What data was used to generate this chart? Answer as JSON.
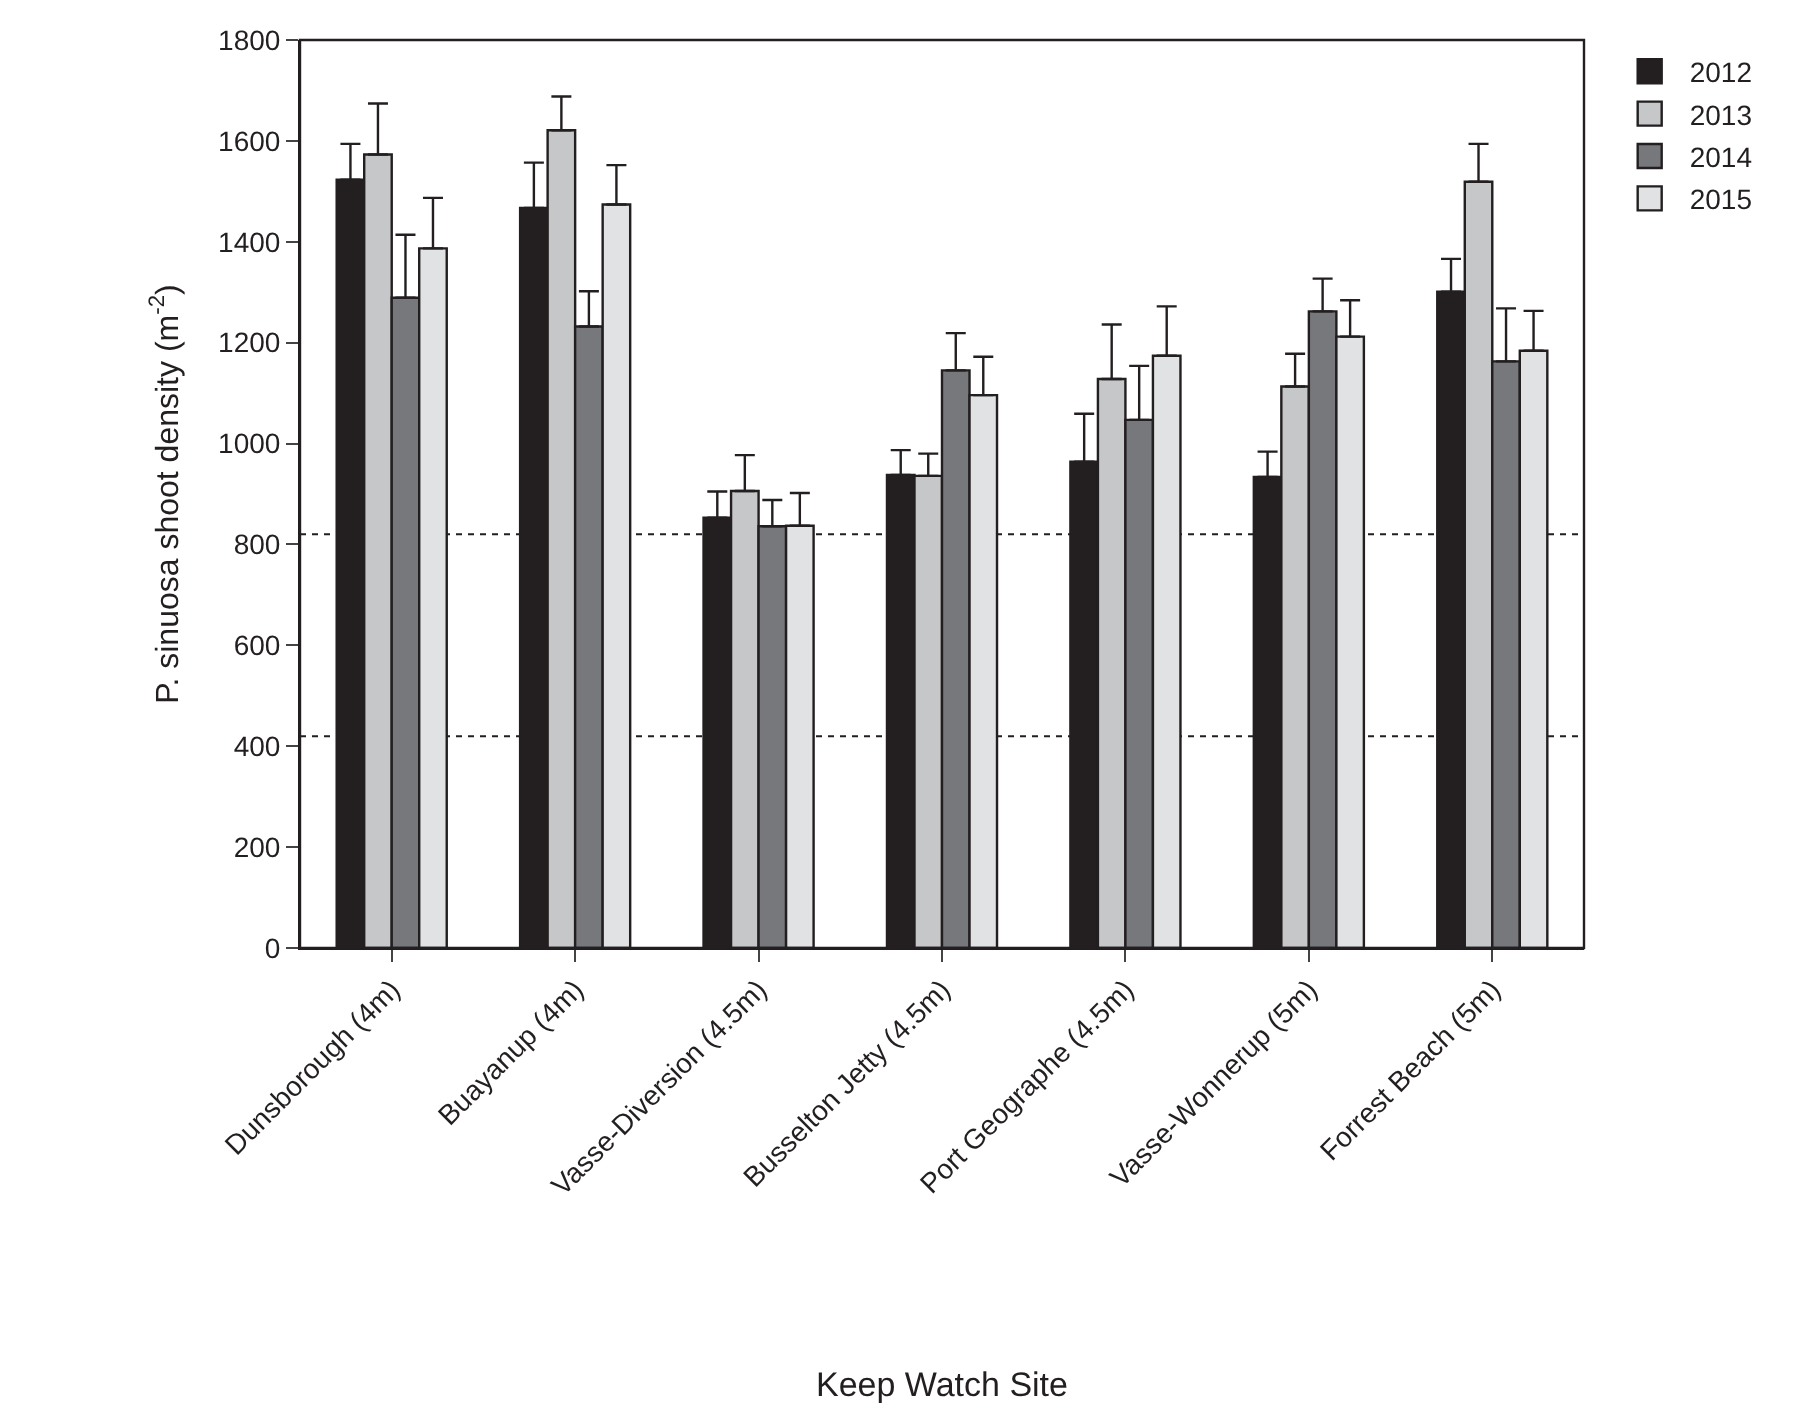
{
  "chart_data": {
    "type": "bar",
    "xlabel": "Keep Watch Site",
    "ylabel": "P. sinuosa shoot density (m$^{-2}$)",
    "categories": [
      "Dunsborough (4m)",
      "Buayanup (4m)",
      "Vasse-Diversion (4.5m)",
      "Busselton Jetty (4.5m)",
      "Port Geographe (4.5m)",
      "Vasse-Wonnerup (5m)",
      "Forrest Beach (5m)"
    ],
    "series": [
      {
        "name": "2012",
        "color": "#231f20",
        "values": [
          1523,
          1467,
          853,
          938,
          964,
          934,
          1301
        ],
        "errors": [
          [
            1523,
            1594
          ],
          [
            1467,
            1557
          ],
          [
            853,
            905
          ],
          [
            938,
            987
          ],
          [
            964,
            1059
          ],
          [
            934,
            984
          ],
          [
            1301,
            1366
          ]
        ]
      },
      {
        "name": "2013",
        "color": "#c6c7c9",
        "values": [
          1573,
          1621,
          906,
          936,
          1128,
          1113,
          1519
        ],
        "errors": [
          [
            1573,
            1674
          ],
          [
            1621,
            1688
          ],
          [
            906,
            977
          ],
          [
            936,
            980
          ],
          [
            1128,
            1236
          ],
          [
            1113,
            1178
          ],
          [
            1519,
            1594
          ]
        ]
      },
      {
        "name": "2014",
        "color": "#77787b",
        "values": [
          1289,
          1232,
          836,
          1145,
          1047,
          1262,
          1163
        ],
        "errors": [
          [
            1289,
            1414
          ],
          [
            1232,
            1302
          ],
          [
            836,
            888
          ],
          [
            1145,
            1219
          ],
          [
            1047,
            1154
          ],
          [
            1262,
            1327
          ],
          [
            1163,
            1268
          ]
        ]
      },
      {
        "name": "2015",
        "color": "#e1e2e3",
        "values": [
          1387,
          1474,
          837,
          1096,
          1174,
          1212,
          1184
        ],
        "errors": [
          [
            1387,
            1487
          ],
          [
            1474,
            1552
          ],
          [
            837,
            902
          ],
          [
            1096,
            1172
          ],
          [
            1174,
            1272
          ],
          [
            1212,
            1284
          ],
          [
            1184,
            1263
          ]
        ]
      }
    ],
    "ylim": [
      0,
      1800
    ],
    "yticks": [
      0,
      200,
      400,
      600,
      800,
      1000,
      1200,
      1400,
      1600,
      1800
    ],
    "ref_lines": [
      {
        "axis": "y",
        "value": 820,
        "line_style": "dotted"
      },
      {
        "axis": "y",
        "value": 420,
        "line_style": "dotted"
      }
    ],
    "legend": "top right"
  }
}
